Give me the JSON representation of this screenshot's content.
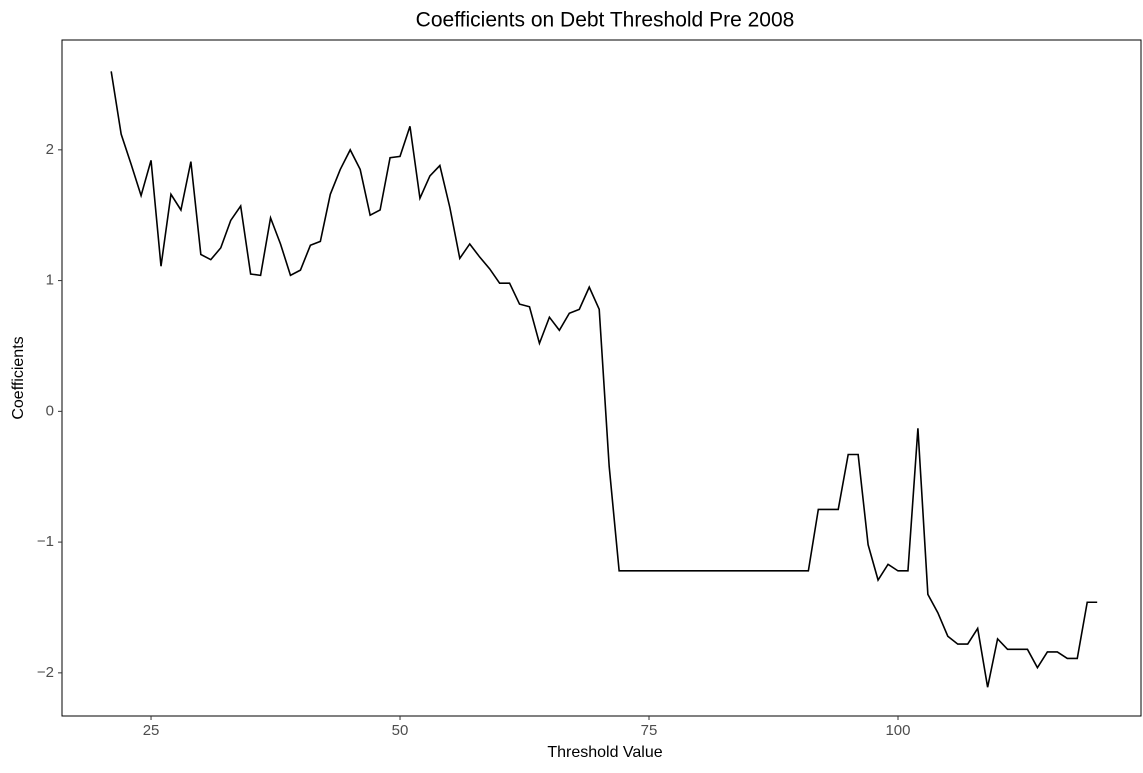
{
  "chart_data": {
    "type": "line",
    "title": "Coefficients on Debt Threshold Pre 2008",
    "x_label": "Threshold Value",
    "y_label": "Coefficients",
    "x": [
      21,
      22,
      23,
      24,
      25,
      26,
      27,
      28,
      29,
      30,
      31,
      32,
      33,
      34,
      35,
      36,
      37,
      38,
      39,
      40,
      41,
      42,
      43,
      44,
      45,
      46,
      47,
      48,
      49,
      50,
      51,
      52,
      53,
      54,
      55,
      56,
      57,
      58,
      59,
      60,
      61,
      62,
      63,
      64,
      65,
      66,
      67,
      68,
      69,
      70,
      71,
      72,
      73,
      74,
      75,
      76,
      77,
      78,
      79,
      80,
      81,
      82,
      83,
      84,
      85,
      86,
      87,
      88,
      89,
      90,
      91,
      92,
      93,
      94,
      95,
      96,
      97,
      98,
      99,
      100,
      101,
      102,
      103,
      104,
      105,
      106,
      107,
      108,
      109,
      110,
      111,
      112,
      113,
      114,
      115,
      116,
      117,
      118,
      119,
      120
    ],
    "series": [
      {
        "name": "Coefficients",
        "color": "#000000",
        "values": [
          2.6,
          2.12,
          1.89,
          1.65,
          1.92,
          1.11,
          1.66,
          1.54,
          1.91,
          1.2,
          1.16,
          1.25,
          1.46,
          1.57,
          1.05,
          1.04,
          1.48,
          1.28,
          1.04,
          1.08,
          1.27,
          1.3,
          1.66,
          1.85,
          2.0,
          1.85,
          1.5,
          1.54,
          1.94,
          1.95,
          2.18,
          1.63,
          1.8,
          1.88,
          1.56,
          1.17,
          1.28,
          1.18,
          1.09,
          0.98,
          0.98,
          0.82,
          0.8,
          0.52,
          0.72,
          0.62,
          0.75,
          0.78,
          0.95,
          0.78,
          -0.42,
          -1.22,
          -1.22,
          -1.22,
          -1.22,
          -1.22,
          -1.22,
          -1.22,
          -1.22,
          -1.22,
          -1.22,
          -1.22,
          -1.22,
          -1.22,
          -1.22,
          -1.22,
          -1.22,
          -1.22,
          -1.22,
          -1.22,
          -1.22,
          -0.75,
          -0.75,
          -0.75,
          -0.33,
          -0.33,
          -1.02,
          -1.29,
          -1.17,
          -1.22,
          -1.22,
          -0.13,
          -1.4,
          -1.54,
          -1.72,
          -1.78,
          -1.78,
          -1.66,
          -2.11,
          -1.74,
          -1.82,
          -1.82,
          -1.82,
          -1.96,
          -1.84,
          -1.84,
          -1.89,
          -1.89,
          -1.46,
          -1.46
        ]
      }
    ],
    "xlim": [
      16.06,
      124.4
    ],
    "ylim": [
      -2.33,
      2.84
    ],
    "xticks": [
      25,
      50,
      75,
      100
    ],
    "yticks": [
      {
        "value": -2,
        "label": "−2"
      },
      {
        "value": -1,
        "label": "−1"
      },
      0,
      1,
      2
    ],
    "grid": false
  }
}
